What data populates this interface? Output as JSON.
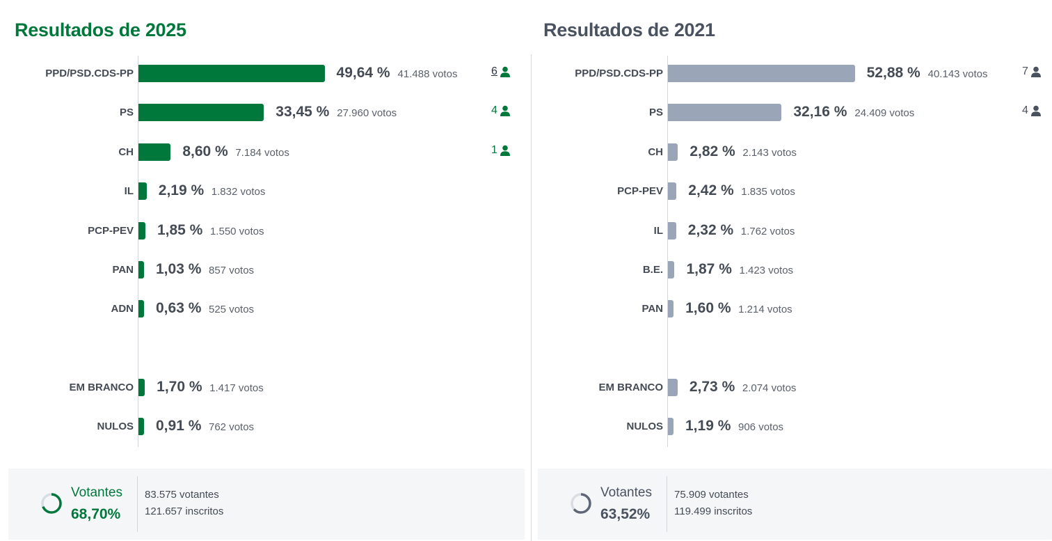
{
  "colors": {
    "accent_2025": "#00783c",
    "accent_2021": "#9aa5b8",
    "title_2021": "#4a5260",
    "text": "#444b55",
    "ring_track": "#d8dde3",
    "ring_2021": "#5f6776"
  },
  "icons": {
    "seat": "person-icon",
    "turnout": "progress-ring-icon"
  },
  "chart_data": [
    {
      "type": "bar",
      "orientation": "horizontal",
      "title": "Resultados de 2025",
      "value_unit": "%",
      "categories": [
        "PPD/PSD.CDS-PP",
        "PS",
        "CH",
        "IL",
        "PCP-PEV",
        "PAN",
        "ADN",
        "EM BRANCO",
        "NULOS"
      ],
      "values": [
        49.64,
        33.45,
        8.6,
        2.19,
        1.85,
        1.03,
        0.63,
        1.7,
        0.91
      ],
      "rows": [
        {
          "party": "PPD/PSD.CDS-PP",
          "pct": 49.64,
          "pct_label": "49,64 %",
          "votes_label": "41.488 votos",
          "seats": "6",
          "linked": true
        },
        {
          "party": "PS",
          "pct": 33.45,
          "pct_label": "33,45 %",
          "votes_label": "27.960 votos",
          "seats": "4"
        },
        {
          "party": "CH",
          "pct": 8.6,
          "pct_label": "8,60 %",
          "votes_label": "7.184 votos",
          "seats": "1"
        },
        {
          "party": "IL",
          "pct": 2.19,
          "pct_label": "2,19 %",
          "votes_label": "1.832 votos"
        },
        {
          "party": "PCP-PEV",
          "pct": 1.85,
          "pct_label": "1,85 %",
          "votes_label": "1.550 votos"
        },
        {
          "party": "PAN",
          "pct": 1.03,
          "pct_label": "1,03 %",
          "votes_label": "857 votos"
        },
        {
          "party": "ADN",
          "pct": 0.63,
          "pct_label": "0,63 %",
          "votes_label": "525 votos"
        },
        {
          "party": "EM BRANCO",
          "pct": 1.7,
          "pct_label": "1,70 %",
          "votes_label": "1.417 votos"
        },
        {
          "party": "NULOS",
          "pct": 0.91,
          "pct_label": "0,91 %",
          "votes_label": "762 votos"
        }
      ],
      "turnout": {
        "label": "Votantes",
        "pct": 68.7,
        "pct_label": "68,70%",
        "voters_label": "83.575 votantes",
        "registered_label": "121.657 inscritos"
      }
    },
    {
      "type": "bar",
      "orientation": "horizontal",
      "title": "Resultados de 2021",
      "value_unit": "%",
      "categories": [
        "PPD/PSD.CDS-PP",
        "PS",
        "CH",
        "PCP-PEV",
        "IL",
        "B.E.",
        "PAN",
        "EM BRANCO",
        "NULOS"
      ],
      "values": [
        52.88,
        32.16,
        2.82,
        2.42,
        2.32,
        1.87,
        1.6,
        2.73,
        1.19
      ],
      "rows": [
        {
          "party": "PPD/PSD.CDS-PP",
          "pct": 52.88,
          "pct_label": "52,88 %",
          "votes_label": "40.143 votos",
          "seats": "7"
        },
        {
          "party": "PS",
          "pct": 32.16,
          "pct_label": "32,16 %",
          "votes_label": "24.409 votos",
          "seats": "4"
        },
        {
          "party": "CH",
          "pct": 2.82,
          "pct_label": "2,82 %",
          "votes_label": "2.143 votos"
        },
        {
          "party": "PCP-PEV",
          "pct": 2.42,
          "pct_label": "2,42 %",
          "votes_label": "1.835 votos"
        },
        {
          "party": "IL",
          "pct": 2.32,
          "pct_label": "2,32 %",
          "votes_label": "1.762 votos"
        },
        {
          "party": "B.E.",
          "pct": 1.87,
          "pct_label": "1,87 %",
          "votes_label": "1.423 votos"
        },
        {
          "party": "PAN",
          "pct": 1.6,
          "pct_label": "1,60 %",
          "votes_label": "1.214 votos"
        },
        {
          "party": "EM BRANCO",
          "pct": 2.73,
          "pct_label": "2,73 %",
          "votes_label": "2.074 votos"
        },
        {
          "party": "NULOS",
          "pct": 1.19,
          "pct_label": "1,19 %",
          "votes_label": "906 votos"
        }
      ],
      "turnout": {
        "label": "Votantes",
        "pct": 63.52,
        "pct_label": "63,52%",
        "voters_label": "75.909 votantes",
        "registered_label": "119.499 inscritos"
      }
    }
  ]
}
